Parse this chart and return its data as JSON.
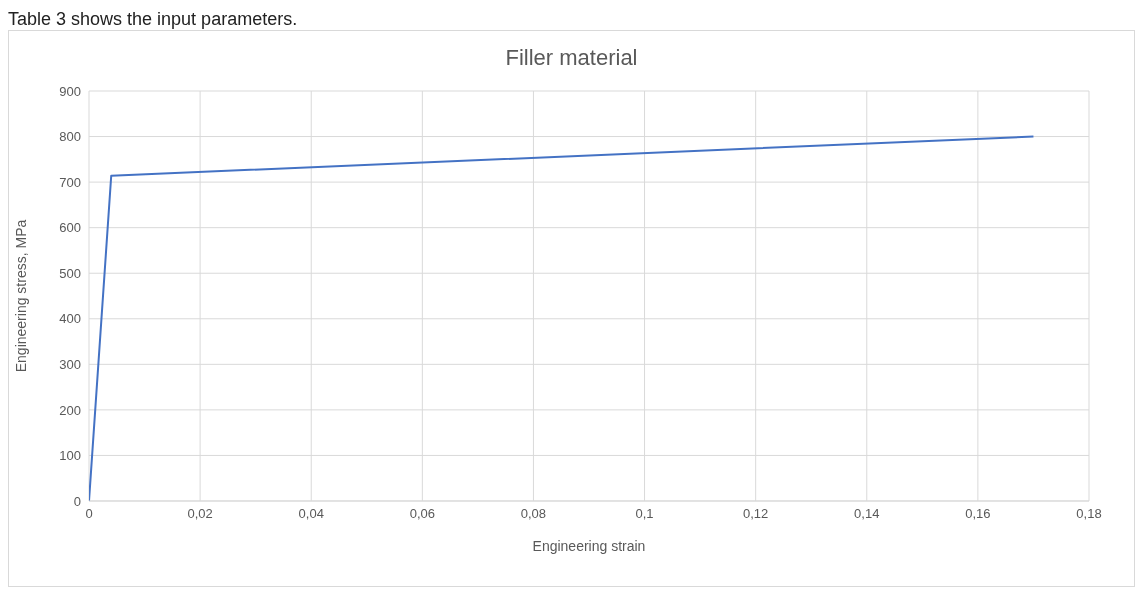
{
  "chart_data": {
    "type": "line",
    "title": "Filler material",
    "xlabel": "Engineering strain",
    "ylabel": "Engineering stress, MPa",
    "annotations": [
      "Table 3 shows the input parameters."
    ],
    "x": [
      0,
      0.004,
      0.17
    ],
    "series": [
      {
        "color": "#4472c4",
        "values": [
          0,
          714,
          800
        ]
      }
    ],
    "xlim": [
      0,
      0.18
    ],
    "xticks": [
      0,
      {
        "value": 0.02,
        "label": "0,02"
      },
      {
        "value": 0.04,
        "label": "0,04"
      },
      {
        "value": 0.06,
        "label": "0,06"
      },
      {
        "value": 0.08,
        "label": "0,08"
      },
      {
        "value": 0.1,
        "label": "0,1"
      },
      {
        "value": 0.12,
        "label": "0,12"
      },
      {
        "value": 0.14,
        "label": "0,14"
      },
      {
        "value": 0.16,
        "label": "0,16"
      },
      {
        "value": 0.18,
        "label": "0,18"
      }
    ],
    "ylim": [
      0,
      900
    ],
    "yticks": [
      0,
      100,
      200,
      300,
      400,
      500,
      600,
      700,
      800,
      900
    ],
    "grid": true,
    "legend": false,
    "marker": "none",
    "line_style": "solid"
  }
}
